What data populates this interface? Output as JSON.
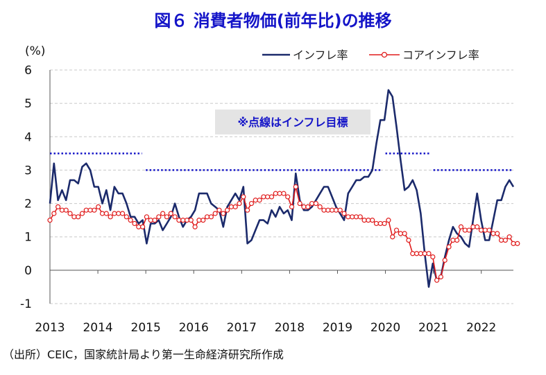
{
  "title": "図６ 消費者物価(前年比)の推移",
  "source": "（出所）CEIC，国家統計局より第一生命経済研究所作成",
  "chart_data": {
    "type": "line",
    "ylabel": "(%)",
    "ylim": [
      -1,
      6
    ],
    "yticks": [
      -1,
      0,
      1,
      2,
      3,
      4,
      5,
      6
    ],
    "xlim": [
      2013.0,
      2022.67
    ],
    "xticks": [
      "2013",
      "2014",
      "2015",
      "2016",
      "2017",
      "2018",
      "2019",
      "2020",
      "2021",
      "2022"
    ],
    "grid": "horizontal-dashed",
    "legend": "top-right",
    "annotation": "※点線はインフレ目標",
    "series": [
      {
        "name": "インフレ率",
        "color": "#1b2a6b",
        "values": [
          2.0,
          3.2,
          2.1,
          2.4,
          2.1,
          2.7,
          2.7,
          2.6,
          3.1,
          3.2,
          3.0,
          2.5,
          2.5,
          2.0,
          2.4,
          1.8,
          2.5,
          2.3,
          2.3,
          2.0,
          1.6,
          1.6,
          1.4,
          1.5,
          0.8,
          1.4,
          1.4,
          1.5,
          1.2,
          1.4,
          1.6,
          2.0,
          1.6,
          1.3,
          1.5,
          1.6,
          1.8,
          2.3,
          2.3,
          2.3,
          2.0,
          1.9,
          1.8,
          1.3,
          1.9,
          2.1,
          2.3,
          2.1,
          2.5,
          0.8,
          0.9,
          1.2,
          1.5,
          1.5,
          1.4,
          1.8,
          1.6,
          1.9,
          1.7,
          1.8,
          1.5,
          2.9,
          2.1,
          1.8,
          1.8,
          1.9,
          2.1,
          2.3,
          2.5,
          2.5,
          2.2,
          1.9,
          1.7,
          1.5,
          2.3,
          2.5,
          2.7,
          2.7,
          2.8,
          2.8,
          3.0,
          3.8,
          4.5,
          4.5,
          5.4,
          5.2,
          4.3,
          3.3,
          2.4,
          2.5,
          2.7,
          2.4,
          1.7,
          0.5,
          -0.5,
          0.2,
          -0.3,
          -0.2,
          0.4,
          0.9,
          1.3,
          1.1,
          1.0,
          0.8,
          0.7,
          1.5,
          2.3,
          1.5,
          0.9,
          0.9,
          1.5,
          2.1,
          2.1,
          2.5,
          2.7,
          2.5
        ]
      },
      {
        "name": "コアインフレ率",
        "color": "#e01c1c",
        "values": [
          1.5,
          1.7,
          1.9,
          1.8,
          1.8,
          1.7,
          1.6,
          1.6,
          1.7,
          1.8,
          1.8,
          1.8,
          1.9,
          1.7,
          1.7,
          1.6,
          1.7,
          1.7,
          1.7,
          1.6,
          1.5,
          1.4,
          1.3,
          1.3,
          1.6,
          1.5,
          1.5,
          1.6,
          1.7,
          1.6,
          1.7,
          1.6,
          1.5,
          1.5,
          1.5,
          1.5,
          1.3,
          1.5,
          1.5,
          1.6,
          1.6,
          1.7,
          1.8,
          1.7,
          1.8,
          1.9,
          1.9,
          2.0,
          2.2,
          1.8,
          2.0,
          2.1,
          2.1,
          2.2,
          2.2,
          2.2,
          2.3,
          2.3,
          2.3,
          2.2,
          1.9,
          2.5,
          2.0,
          1.9,
          1.9,
          2.0,
          2.0,
          1.9,
          1.8,
          1.8,
          1.8,
          1.8,
          1.8,
          1.7,
          1.6,
          1.6,
          1.6,
          1.6,
          1.5,
          1.5,
          1.5,
          1.4,
          1.4,
          1.4,
          1.5,
          1.0,
          1.2,
          1.1,
          1.1,
          0.9,
          0.5,
          0.5,
          0.5,
          0.5,
          0.5,
          0.4,
          -0.3,
          -0.2,
          0.3,
          0.7,
          0.9,
          0.9,
          1.3,
          1.2,
          1.2,
          1.3,
          1.3,
          1.2,
          1.2,
          1.2,
          1.1,
          1.1,
          0.9,
          0.9,
          1.0,
          0.8,
          0.8
        ]
      }
    ],
    "targets": [
      {
        "from": 2013.0,
        "to": 2014.92,
        "value": 3.5
      },
      {
        "from": 2015.0,
        "to": 2019.92,
        "value": 3.0
      },
      {
        "from": 2020.0,
        "to": 2020.92,
        "value": 3.5
      },
      {
        "from": 2021.0,
        "to": 2022.67,
        "value": 3.0
      }
    ]
  }
}
